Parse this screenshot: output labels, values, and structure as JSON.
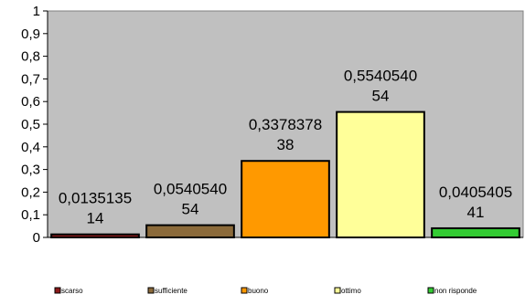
{
  "chart_data": {
    "type": "bar",
    "categories": [
      "scarso",
      "sufficiente",
      "buono",
      "ottimo",
      "non risponde"
    ],
    "values": [
      0.0135135,
      0.0540541,
      0.3378378,
      0.5540541,
      0.0405405
    ],
    "data_labels": [
      [
        "0,0135135",
        "14"
      ],
      [
        "0,0540540",
        "54"
      ],
      [
        "0,3378378",
        "38"
      ],
      [
        "0,5540540",
        "54"
      ],
      [
        "0,0405405",
        "41"
      ]
    ],
    "colors": [
      "#8b1a1a",
      "#8b6a3a",
      "#ff9900",
      "#ffff99",
      "#33cc33"
    ],
    "plot_background": "#c0c0c0",
    "ylim": [
      0,
      1
    ],
    "yticks": [
      0,
      0.1,
      0.2,
      0.3,
      0.4,
      0.5,
      0.6,
      0.7,
      0.8,
      0.9,
      1
    ],
    "ytick_labels": [
      "0",
      "0,1",
      "0,2",
      "0,3",
      "0,4",
      "0,5",
      "0,6",
      "0,7",
      "0,8",
      "0,9",
      "1"
    ],
    "grid": false,
    "legend_position": "bottom",
    "title": "",
    "xlabel": "",
    "ylabel": ""
  }
}
